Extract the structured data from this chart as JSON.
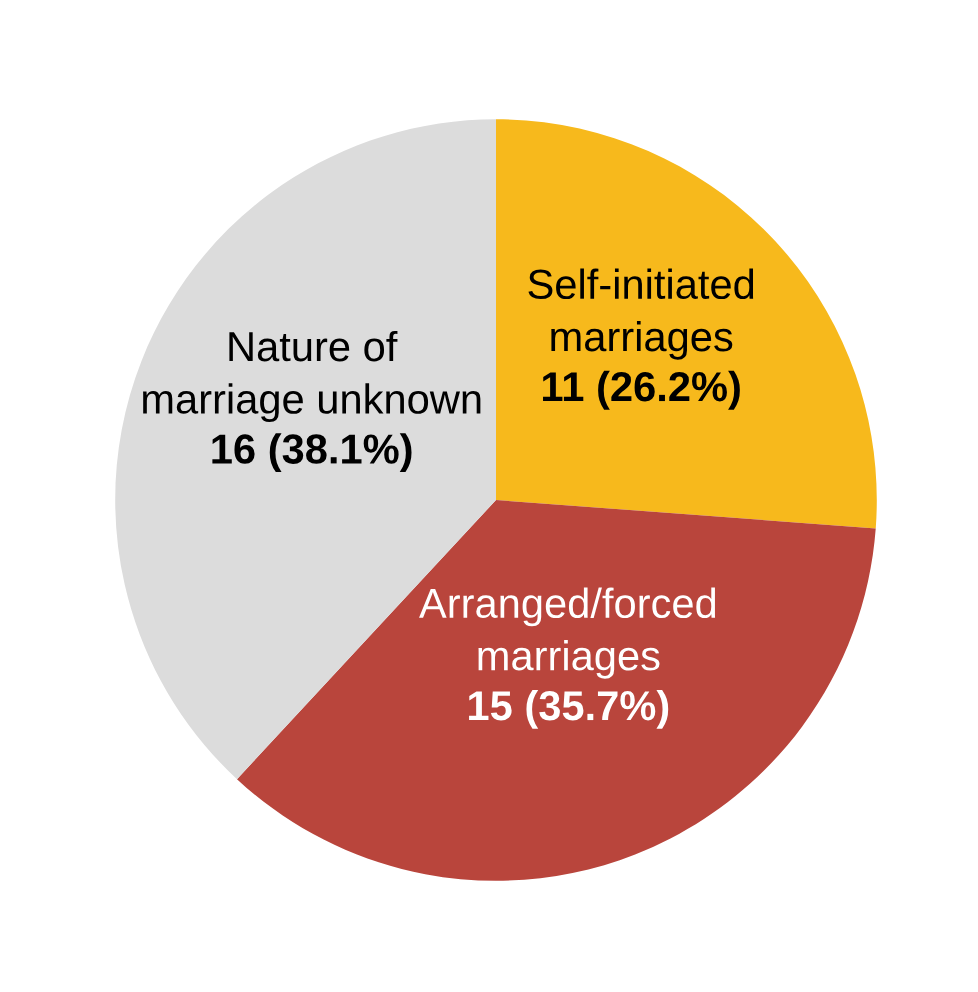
{
  "chart_data": {
    "type": "pie",
    "categories": [
      "Self-initiated\nmarriages",
      "Arranged/forced\nmarriages",
      "Nature of\nmarriage unknown"
    ],
    "values": [
      11,
      15,
      16
    ],
    "colors": [
      "#f7b91c",
      "#b9453c",
      "#dcdcdc"
    ],
    "value_labels": [
      "11 (26.2%)",
      "15 (35.7%)",
      "16 (38.1%)"
    ]
  }
}
